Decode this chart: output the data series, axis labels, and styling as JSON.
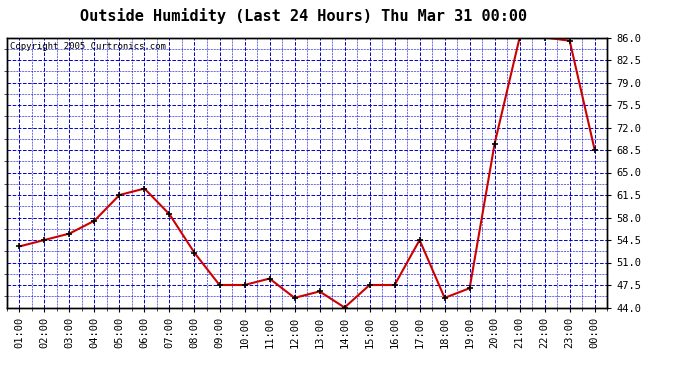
{
  "title": "Outside Humidity (Last 24 Hours) Thu Mar 31 00:00",
  "copyright": "Copyright 2005 Curtronics.com",
  "x_labels": [
    "01:00",
    "02:00",
    "03:00",
    "04:00",
    "05:00",
    "06:00",
    "07:00",
    "08:00",
    "09:00",
    "10:00",
    "11:00",
    "12:00",
    "13:00",
    "14:00",
    "15:00",
    "16:00",
    "17:00",
    "18:00",
    "19:00",
    "20:00",
    "21:00",
    "22:00",
    "23:00",
    "00:00"
  ],
  "y_values": [
    53.5,
    54.5,
    55.5,
    57.5,
    61.5,
    62.5,
    58.5,
    52.5,
    47.5,
    47.5,
    48.5,
    45.5,
    46.5,
    44.0,
    47.5,
    47.5,
    54.5,
    45.5,
    47.0,
    69.5,
    86.0,
    86.0,
    85.5,
    68.5
  ],
  "ylim": [
    44.0,
    86.0
  ],
  "yticks": [
    44.0,
    47.5,
    51.0,
    54.5,
    58.0,
    61.5,
    65.0,
    68.5,
    72.0,
    75.5,
    79.0,
    82.5,
    86.0
  ],
  "line_color": "#cc0000",
  "marker_color": "#000000",
  "grid_color": "#0000cc",
  "bg_color": "#ffffff",
  "plot_bg_color": "#ffffff",
  "title_fontsize": 11,
  "copyright_fontsize": 6.5,
  "axis_fontsize": 7.5
}
